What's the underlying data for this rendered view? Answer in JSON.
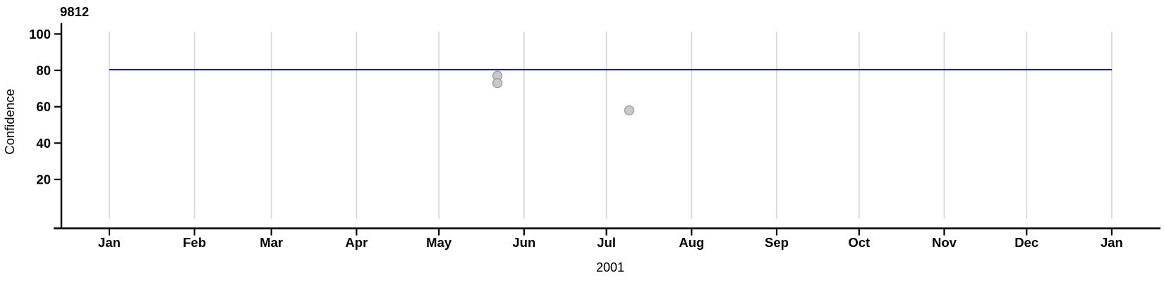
{
  "page": {
    "background": "#FFFFFF"
  },
  "chart_data": {
    "type": "scatter",
    "title": "9812",
    "xlabel": "2001",
    "ylabel": "Confidence",
    "legend": "none",
    "x_axis": {
      "unit": "month",
      "year": "2001",
      "tick_labels": [
        "Jan",
        "Feb",
        "Mar",
        "Apr",
        "May",
        "Jun",
        "Jul",
        "Aug",
        "Sep",
        "Oct",
        "Nov",
        "Dec",
        "Jan"
      ],
      "tick_day_offsets": [
        0,
        31,
        59,
        90,
        120,
        151,
        181,
        212,
        243,
        273,
        304,
        334,
        365
      ],
      "domain_days": [
        0,
        365
      ]
    },
    "y_axis": {
      "tick_values": [
        20,
        40,
        60,
        80,
        100
      ],
      "ylim": [
        -7,
        106
      ]
    },
    "grid": {
      "vertical": true,
      "horizontal": false,
      "color": "#D8D8D8"
    },
    "reference_line": {
      "value": 80,
      "color": "#0000CC",
      "start_day": 0,
      "end_day": 365
    },
    "series": [
      {
        "name": "confidence-points",
        "marker": "circle",
        "fill": "#C9C9C9",
        "stroke": "#9E9E9E",
        "points": [
          {
            "date": "2001-05-22",
            "day_of_year": 141.3,
            "value": 77
          },
          {
            "date": "2001-05-22",
            "day_of_year": 141.3,
            "value": 73
          },
          {
            "date": "2001-07-09",
            "day_of_year": 189.3,
            "value": 58
          }
        ]
      }
    ],
    "axis_color": "#000000"
  }
}
